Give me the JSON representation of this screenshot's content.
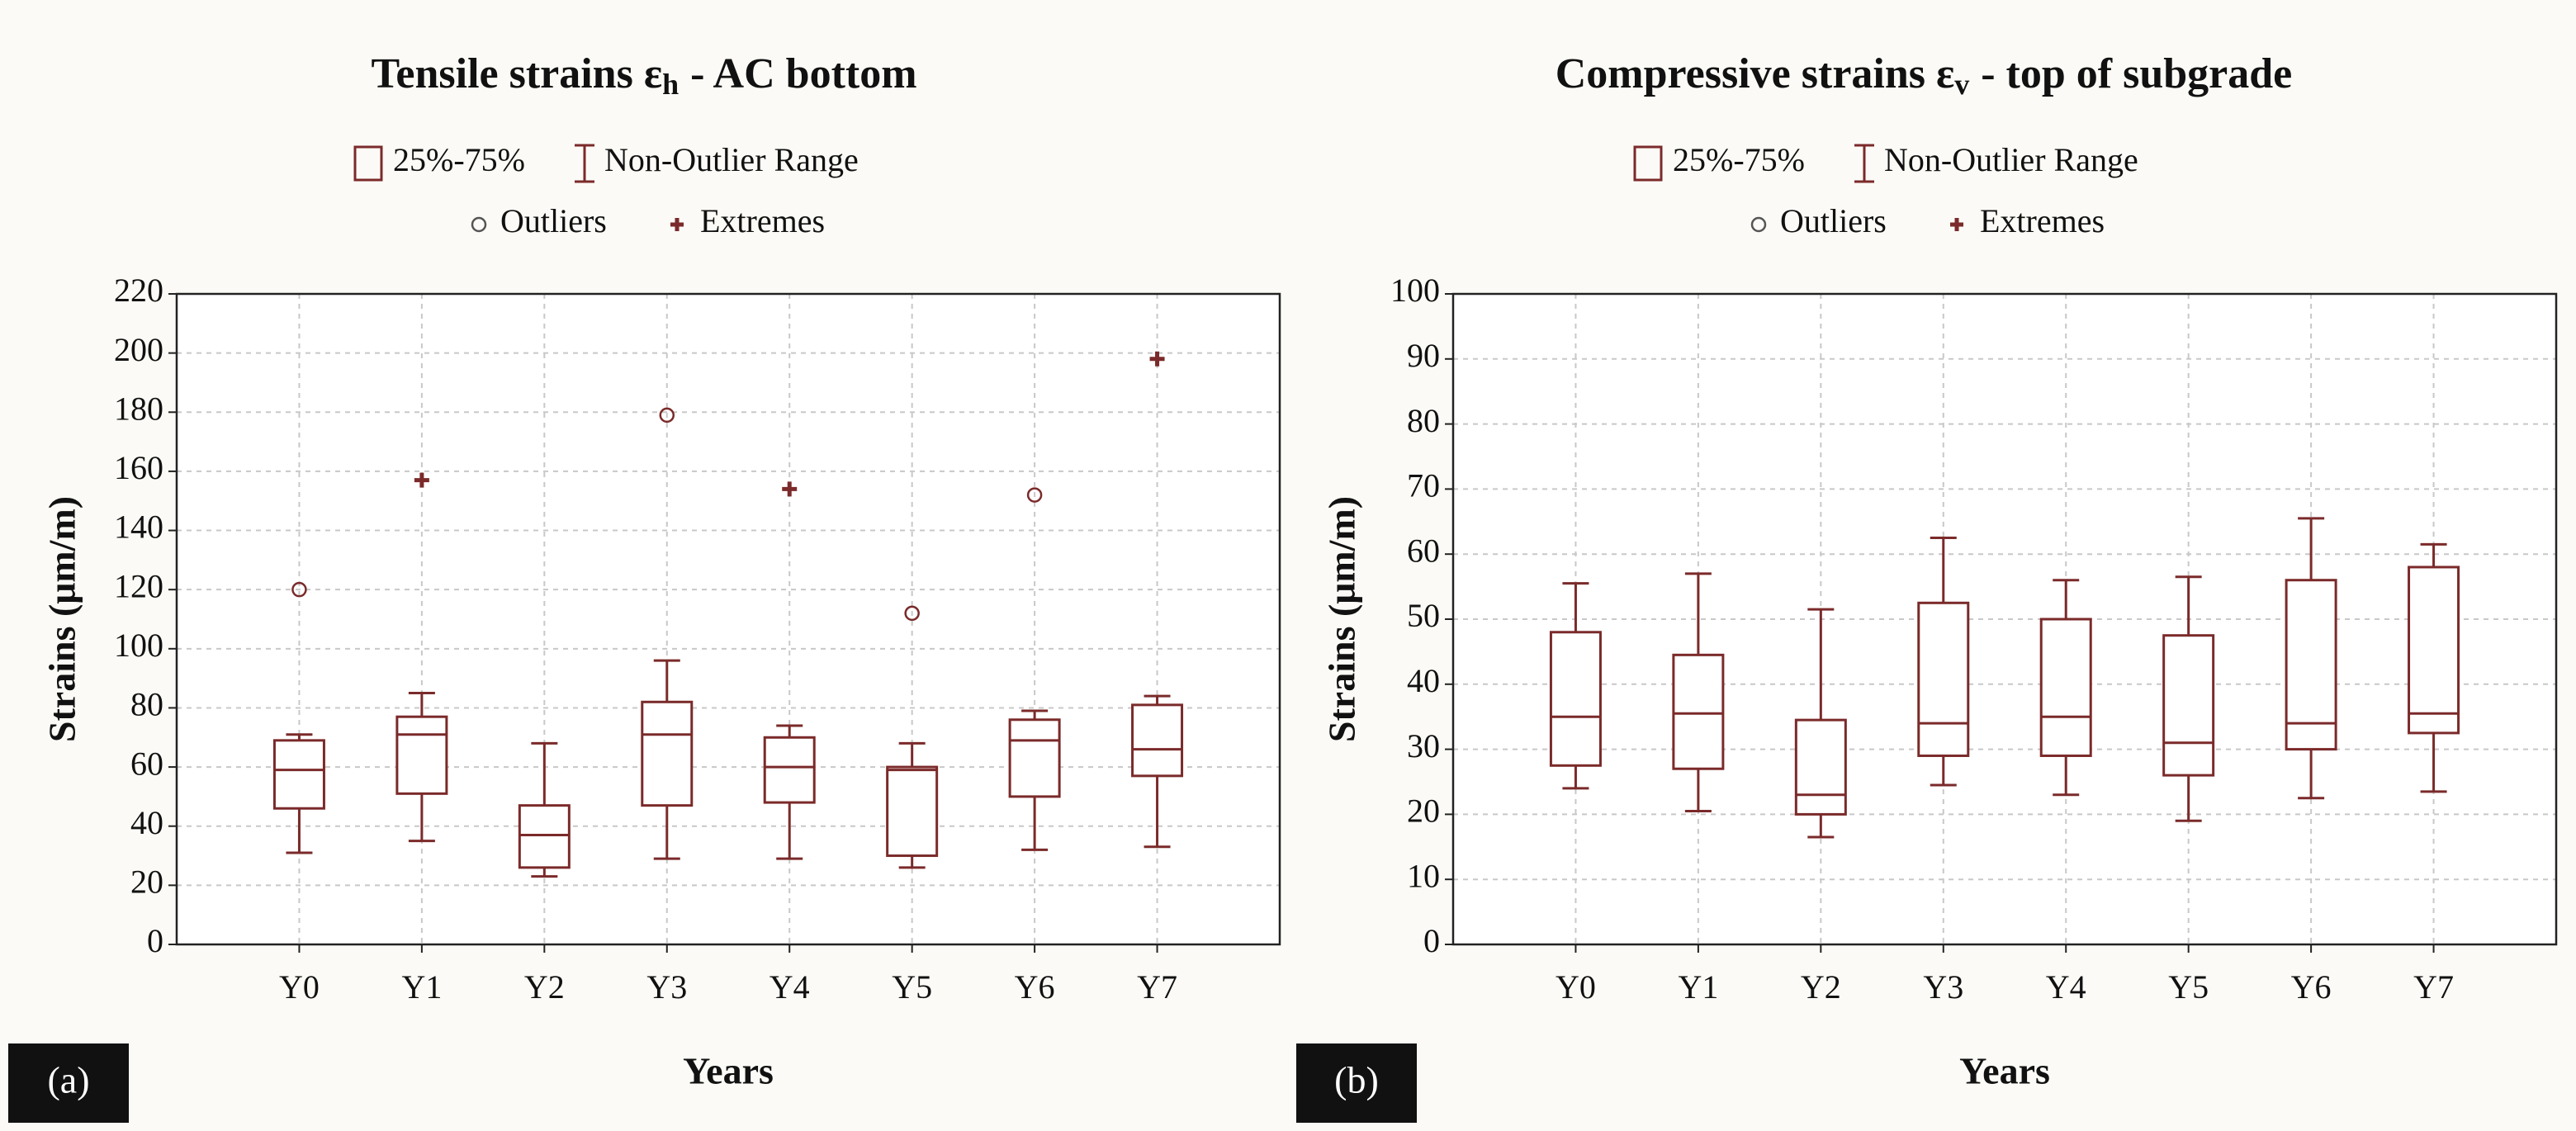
{
  "chart_data": [
    {
      "type": "box",
      "title": "Tensile strains ε",
      "title_subscript": "h",
      "title_end": "- AC bottom",
      "panel_label": "(a)",
      "x_label": "Years",
      "y_label": "Strains (μm/m)",
      "legend": {
        "box": "25%-75%",
        "whisker": "Non-Outlier Range",
        "outlier": "Outliers",
        "extreme": "Extremes"
      },
      "color": "#7b2a2a",
      "grid": true,
      "categories": [
        "Y0",
        "Y1",
        "Y2",
        "Y3",
        "Y4",
        "Y5",
        "Y6",
        "Y7"
      ],
      "min": [
        31,
        35,
        23,
        29,
        29,
        26,
        32,
        33
      ],
      "q1": [
        46,
        51,
        26,
        47,
        48,
        30,
        50,
        57
      ],
      "median": [
        59,
        71,
        37,
        71,
        60,
        59,
        69,
        66
      ],
      "q3": [
        69,
        77,
        47,
        82,
        70,
        60,
        76,
        81
      ],
      "max": [
        71,
        85,
        68,
        96,
        74,
        68,
        79,
        84
      ],
      "outliers": [
        [
          120
        ],
        [],
        [],
        [
          179
        ],
        [],
        [
          112
        ],
        [
          152
        ],
        []
      ],
      "extremes": [
        [],
        [
          157
        ],
        [],
        [],
        [
          154
        ],
        [],
        [],
        [
          198
        ]
      ],
      "ylim": [
        0,
        220
      ],
      "yticks": [
        0,
        20,
        40,
        60,
        80,
        100,
        120,
        140,
        160,
        180,
        200,
        220
      ]
    },
    {
      "type": "box",
      "title": "Compressive strains ε",
      "title_subscript": "v",
      "title_end": "- top of subgrade",
      "panel_label": "(b)",
      "x_label": "Years",
      "y_label": "Strains (μm/m)",
      "legend": {
        "box": "25%-75%",
        "whisker": "Non-Outlier Range",
        "outlier": "Outliers",
        "extreme": "Extremes"
      },
      "color": "#7b2a2a",
      "grid": true,
      "categories": [
        "Y0",
        "Y1",
        "Y2",
        "Y3",
        "Y4",
        "Y5",
        "Y6",
        "Y7"
      ],
      "min": [
        24,
        20.5,
        16.5,
        24.5,
        23,
        19,
        22.5,
        23.5
      ],
      "q1": [
        27.5,
        27,
        20,
        29,
        29,
        26,
        30,
        32.5
      ],
      "median": [
        35,
        35.5,
        23,
        34,
        35,
        31,
        34,
        35.5
      ],
      "q3": [
        48,
        44.5,
        34.5,
        52.5,
        50,
        47.5,
        56,
        58
      ],
      "max": [
        55.5,
        57,
        51.5,
        62.5,
        56,
        56.5,
        65.5,
        61.5
      ],
      "ylim": [
        0,
        100
      ],
      "yticks": [
        0,
        10,
        20,
        30,
        40,
        50,
        60,
        70,
        80,
        90,
        100
      ]
    }
  ]
}
